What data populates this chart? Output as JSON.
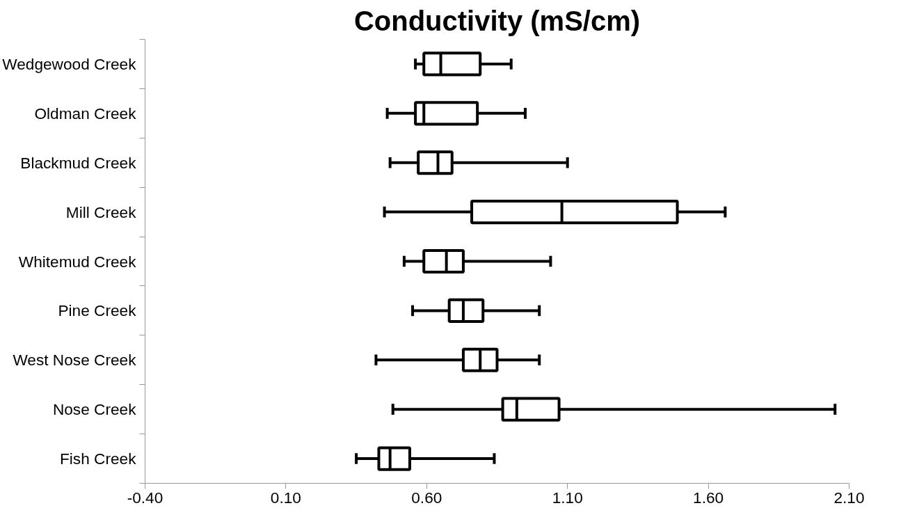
{
  "chart_data": {
    "type": "box",
    "title": "Conductivity (mS/cm)",
    "orientation": "horizontal",
    "grid": false,
    "color": "#000000",
    "categories": [
      "Wedgewood Creek",
      "Oldman Creek",
      "Blackmud Creek",
      "Mill Creek",
      "Whitemud Creek",
      "Pine Creek",
      "West Nose Creek",
      "Nose Creek",
      "Fish Creek"
    ],
    "boxes": [
      {
        "low": 0.56,
        "q1": 0.59,
        "median": 0.65,
        "q3": 0.79,
        "high": 0.9
      },
      {
        "low": 0.46,
        "q1": 0.56,
        "median": 0.59,
        "q3": 0.78,
        "high": 0.95
      },
      {
        "low": 0.47,
        "q1": 0.57,
        "median": 0.64,
        "q3": 0.69,
        "high": 1.1
      },
      {
        "low": 0.45,
        "q1": 0.76,
        "median": 1.08,
        "q3": 1.49,
        "high": 1.66
      },
      {
        "low": 0.52,
        "q1": 0.59,
        "median": 0.67,
        "q3": 0.73,
        "high": 1.04
      },
      {
        "low": 0.55,
        "q1": 0.68,
        "median": 0.73,
        "q3": 0.8,
        "high": 1.0
      },
      {
        "low": 0.42,
        "q1": 0.73,
        "median": 0.79,
        "q3": 0.85,
        "high": 1.0
      },
      {
        "low": 0.48,
        "q1": 0.87,
        "median": 0.92,
        "q3": 1.07,
        "high": 2.05
      },
      {
        "low": 0.35,
        "q1": 0.43,
        "median": 0.47,
        "q3": 0.54,
        "high": 0.84
      }
    ],
    "xlim": [
      -0.4,
      2.1
    ],
    "xticks": [
      {
        "value": -0.4,
        "label": "-0.40"
      },
      {
        "value": 0.1,
        "label": "0.10"
      },
      {
        "value": 0.6,
        "label": "0.60"
      },
      {
        "value": 1.1,
        "label": "1.10"
      },
      {
        "value": 1.6,
        "label": "1.60"
      },
      {
        "value": 2.1,
        "label": "2.10"
      }
    ]
  }
}
